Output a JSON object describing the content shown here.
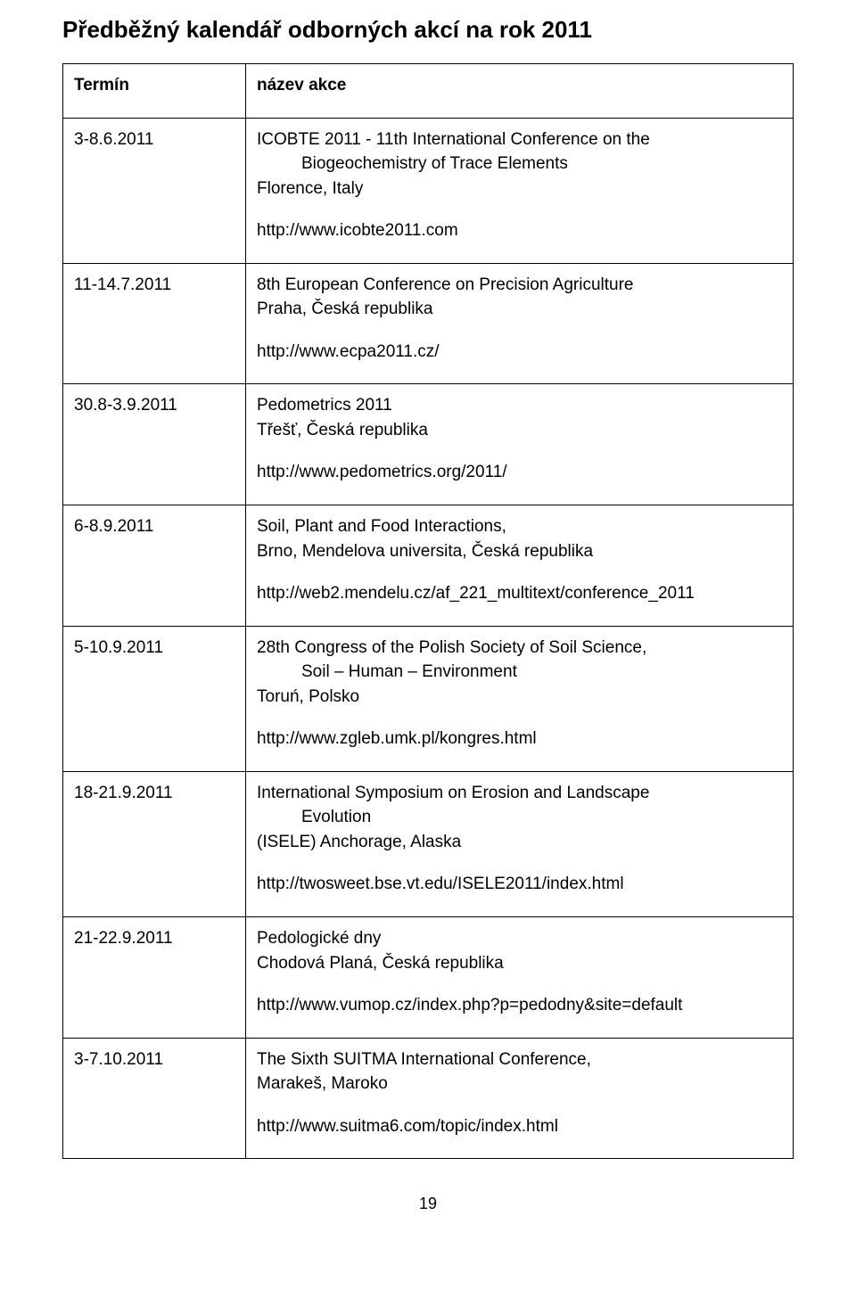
{
  "title": "Předběžný kalendář odborných akcí na rok 2011",
  "header": {
    "col1": "Termín",
    "col2": "název akce"
  },
  "events": [
    {
      "date": "3-8.6.2011",
      "line1": "ICOBTE 2011 - 11th International Conference on the",
      "line2": "Biogeochemistry of Trace Elements",
      "loc": "Florence, Italy",
      "loc_indent": false,
      "link": "http://www.icobte2011.com"
    },
    {
      "date": "11-14.7.2011",
      "line1": "8th European Conference on Precision Agriculture",
      "line2": "",
      "loc": "Praha, Česká republika",
      "loc_indent": false,
      "link": "http://www.ecpa2011.cz/"
    },
    {
      "date": "30.8-3.9.2011",
      "line1": "Pedometrics 2011",
      "line2": "",
      "loc": "Třešť, Česká republika",
      "loc_indent": false,
      "link": "http://www.pedometrics.org/2011/"
    },
    {
      "date": "6-8.9.2011",
      "line1": "Soil, Plant and Food Interactions,",
      "line2": "",
      "loc": "Brno, Mendelova universita, Česká republika",
      "loc_indent": false,
      "link": "http://web2.mendelu.cz/af_221_multitext/conference_2011"
    },
    {
      "date": "5-10.9.2011",
      "line1": "28th Congress of the Polish Society of Soil Science,",
      "line2": "Soil – Human – Environment",
      "loc": "Toruń, Polsko",
      "loc_indent": false,
      "link": "http://www.zgleb.umk.pl/kongres.html"
    },
    {
      "date": "18-21.9.2011",
      "line1": "International Symposium on Erosion and Landscape",
      "line2": "Evolution",
      "loc": "(ISELE) Anchorage, Alaska",
      "loc_indent": false,
      "link": "http://twosweet.bse.vt.edu/ISELE2011/index.html"
    },
    {
      "date": "21-22.9.2011",
      "line1": "Pedologické dny",
      "line2": "",
      "loc": "Chodová Planá, Česká republika",
      "loc_indent": false,
      "link": "http://www.vumop.cz/index.php?p=pedodny&site=default"
    },
    {
      "date": "3-7.10.2011",
      "line1": "The Sixth SUITMA International Conference,",
      "line2": "",
      "loc": "Marakeš, Maroko",
      "loc_indent": false,
      "link": "http://www.suitma6.com/topic/index.html"
    }
  ],
  "page_number": "19"
}
